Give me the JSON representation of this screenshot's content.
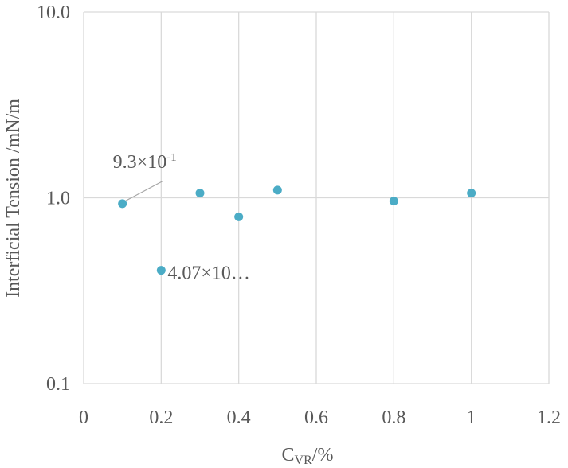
{
  "chart_data": {
    "type": "scatter",
    "title": "",
    "xlabel": {
      "main": "C",
      "subscript": "VR",
      "suffix": "/%"
    },
    "ylabel": "Interficial Tension /mN/m",
    "xlim": [
      0,
      1.2
    ],
    "ylim": [
      0.1,
      10
    ],
    "yscale": "log",
    "grid": true,
    "x_ticks": [
      "0",
      "0.2",
      "0.4",
      "0.6",
      "0.8",
      "1",
      "1.2"
    ],
    "y_ticks": [
      "0.1",
      "1.0",
      "10.0"
    ],
    "marker_color": "#4bacc6",
    "gridline_color": "#d9d9d9",
    "series": [
      {
        "points": [
          {
            "x": 0.1,
            "y": 0.93
          },
          {
            "x": 0.2,
            "y": 0.407
          },
          {
            "x": 0.3,
            "y": 1.06
          },
          {
            "x": 0.4,
            "y": 0.79
          },
          {
            "x": 0.5,
            "y": 1.1
          },
          {
            "x": 0.8,
            "y": 0.96
          },
          {
            "x": 1.0,
            "y": 1.06
          }
        ]
      }
    ],
    "annotations": [
      {
        "point_index": 0,
        "base": "9.3×10",
        "exponent": "-1",
        "leader_line": true
      },
      {
        "point_index": 1,
        "base": "4.07×10…",
        "exponent": "",
        "leader_line": false
      }
    ]
  }
}
